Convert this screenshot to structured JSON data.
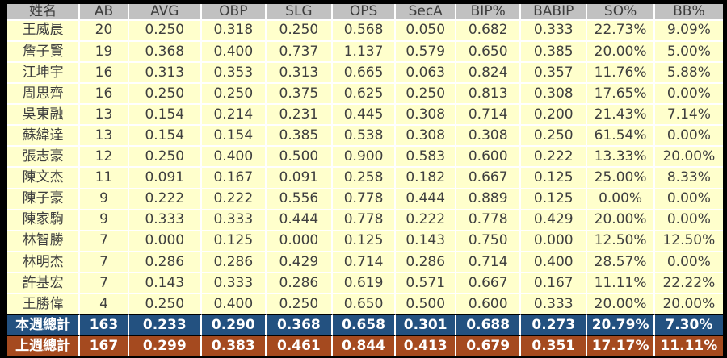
{
  "colors": {
    "frame_bg": "#000000",
    "header_bg": "#c1c1c1",
    "data_row_bg": "#ffffcc",
    "gridline": "#ffffff",
    "this_week_total_bg": "#235180",
    "last_week_total_bg": "#a54a1f",
    "data_text": "#3f3f3f",
    "total_text": "#ffffff"
  },
  "chart_data": {
    "type": "table",
    "columns": [
      "姓名",
      "AB",
      "AVG",
      "OBP",
      "SLG",
      "OPS",
      "SecA",
      "BIP%",
      "BABIP",
      "SO%",
      "BB%"
    ],
    "player_rows": [
      [
        "王威晨",
        "20",
        "0.250",
        "0.318",
        "0.250",
        "0.568",
        "0.050",
        "0.682",
        "0.333",
        "22.73%",
        "9.09%"
      ],
      [
        "詹子賢",
        "19",
        "0.368",
        "0.400",
        "0.737",
        "1.137",
        "0.579",
        "0.650",
        "0.385",
        "20.00%",
        "5.00%"
      ],
      [
        "江坤宇",
        "16",
        "0.313",
        "0.353",
        "0.313",
        "0.665",
        "0.063",
        "0.824",
        "0.357",
        "11.76%",
        "5.88%"
      ],
      [
        "周思齊",
        "16",
        "0.250",
        "0.250",
        "0.375",
        "0.625",
        "0.250",
        "0.813",
        "0.308",
        "17.65%",
        "0.00%"
      ],
      [
        "吳東融",
        "13",
        "0.154",
        "0.214",
        "0.231",
        "0.445",
        "0.308",
        "0.714",
        "0.200",
        "21.43%",
        "7.14%"
      ],
      [
        "蘇緯達",
        "13",
        "0.154",
        "0.154",
        "0.385",
        "0.538",
        "0.308",
        "0.308",
        "0.250",
        "61.54%",
        "0.00%"
      ],
      [
        "張志豪",
        "12",
        "0.250",
        "0.400",
        "0.500",
        "0.900",
        "0.583",
        "0.600",
        "0.222",
        "13.33%",
        "20.00%"
      ],
      [
        "陳文杰",
        "11",
        "0.091",
        "0.167",
        "0.091",
        "0.258",
        "0.182",
        "0.667",
        "0.125",
        "25.00%",
        "8.33%"
      ],
      [
        "陳子豪",
        "9",
        "0.222",
        "0.222",
        "0.556",
        "0.778",
        "0.444",
        "0.889",
        "0.125",
        "0.00%",
        "0.00%"
      ],
      [
        "陳家駒",
        "9",
        "0.333",
        "0.333",
        "0.444",
        "0.778",
        "0.222",
        "0.778",
        "0.429",
        "20.00%",
        "0.00%"
      ],
      [
        "林智勝",
        "7",
        "0.000",
        "0.125",
        "0.000",
        "0.125",
        "0.143",
        "0.750",
        "0.000",
        "12.50%",
        "12.50%"
      ],
      [
        "林明杰",
        "7",
        "0.286",
        "0.286",
        "0.429",
        "0.714",
        "0.286",
        "0.714",
        "0.400",
        "28.57%",
        "0.00%"
      ],
      [
        "許基宏",
        "7",
        "0.143",
        "0.333",
        "0.286",
        "0.619",
        "0.571",
        "0.667",
        "0.167",
        "11.11%",
        "22.22%"
      ],
      [
        "王勝偉",
        "4",
        "0.250",
        "0.400",
        "0.250",
        "0.650",
        "0.500",
        "0.600",
        "0.333",
        "20.00%",
        "20.00%"
      ]
    ],
    "total_rows": [
      {
        "label": "本週總計",
        "style": "total-this",
        "values": [
          "163",
          "0.233",
          "0.290",
          "0.368",
          "0.658",
          "0.301",
          "0.688",
          "0.273",
          "20.79%",
          "7.30%"
        ]
      },
      {
        "label": "上週總計",
        "style": "total-last",
        "values": [
          "167",
          "0.299",
          "0.383",
          "0.461",
          "0.844",
          "0.413",
          "0.679",
          "0.351",
          "17.17%",
          "11.11%"
        ]
      }
    ]
  }
}
